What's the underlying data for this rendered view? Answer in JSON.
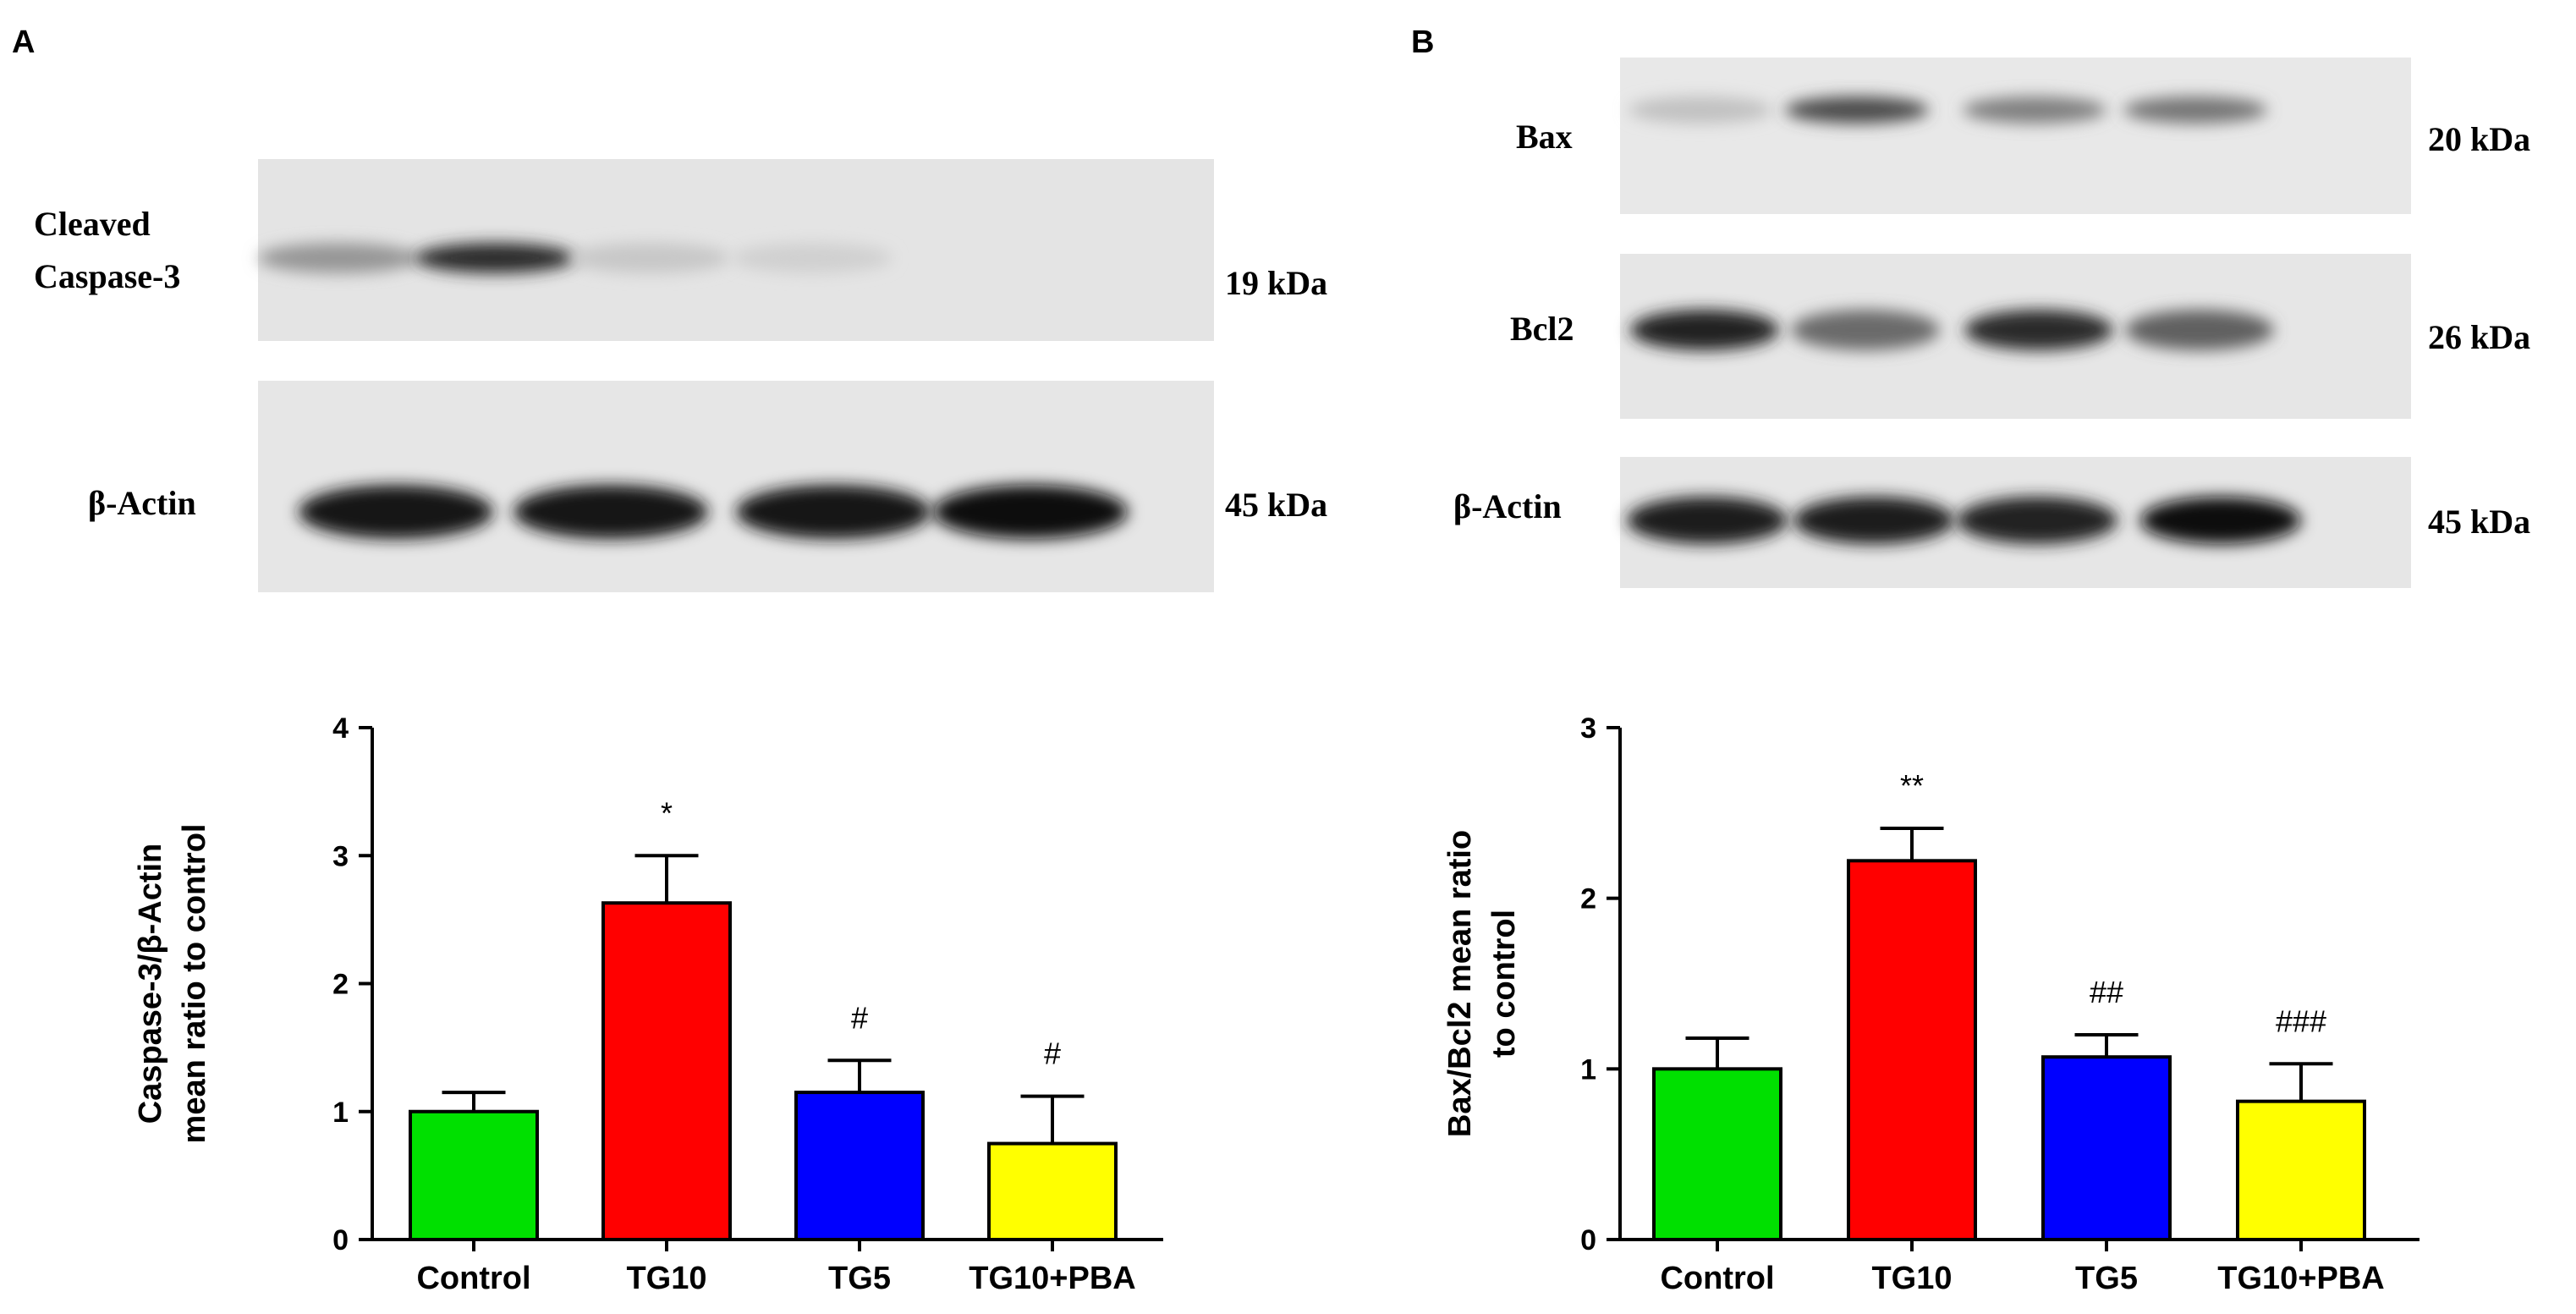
{
  "panels": {
    "a": {
      "letter": "A",
      "blots": [
        {
          "label_lines": [
            "Cleaved",
            "Caspase-3"
          ],
          "kda": "19 kDa",
          "band_intensity": [
            0.35,
            0.85,
            0.12,
            0.08
          ]
        },
        {
          "label_lines": [
            "β-Actin"
          ],
          "kda": "45 kDa",
          "band_intensity": [
            0.95,
            0.95,
            0.95,
            0.97
          ]
        }
      ]
    },
    "b": {
      "letter": "B",
      "blots": [
        {
          "label_lines": [
            "Bax"
          ],
          "kda": "20 kDa",
          "band_intensity": [
            0.15,
            0.7,
            0.45,
            0.5
          ]
        },
        {
          "label_lines": [
            "Bcl2"
          ],
          "kda": "26 kDa",
          "band_intensity": [
            0.9,
            0.55,
            0.85,
            0.6
          ]
        },
        {
          "label_lines": [
            "β-Actin"
          ],
          "kda": "45 kDa",
          "band_intensity": [
            0.92,
            0.92,
            0.9,
            0.97
          ]
        }
      ]
    }
  },
  "chart_data": [
    {
      "type": "bar",
      "title": "",
      "ylabel_lines": [
        "Caspase-3/β-Actin",
        "mean ratio to control"
      ],
      "xlabel": "",
      "categories": [
        "Control",
        "TG10",
        "TG5",
        "TG10+PBA"
      ],
      "values": [
        1.0,
        2.63,
        1.15,
        0.75
      ],
      "errors": [
        0.15,
        0.37,
        0.25,
        0.37
      ],
      "significance": [
        "",
        "*",
        "#",
        "#"
      ],
      "colors": [
        "#00e000",
        "#ff0000",
        "#0000ff",
        "#ffff00"
      ],
      "ylim": [
        0,
        4
      ],
      "yticks": [
        0,
        1,
        2,
        3,
        4
      ],
      "grid": false
    },
    {
      "type": "bar",
      "title": "",
      "ylabel_lines": [
        "Bax/Bcl2 mean ratio",
        "to control"
      ],
      "xlabel": "",
      "categories": [
        "Control",
        "TG10",
        "TG5",
        "TG10+PBA"
      ],
      "values": [
        1.0,
        2.22,
        1.07,
        0.81
      ],
      "errors": [
        0.18,
        0.19,
        0.13,
        0.22
      ],
      "significance": [
        "",
        "**",
        "##",
        "###"
      ],
      "colors": [
        "#00e000",
        "#ff0000",
        "#0000ff",
        "#ffff00"
      ],
      "ylim": [
        0,
        3
      ],
      "yticks": [
        0,
        1,
        2,
        3
      ],
      "grid": false
    }
  ]
}
